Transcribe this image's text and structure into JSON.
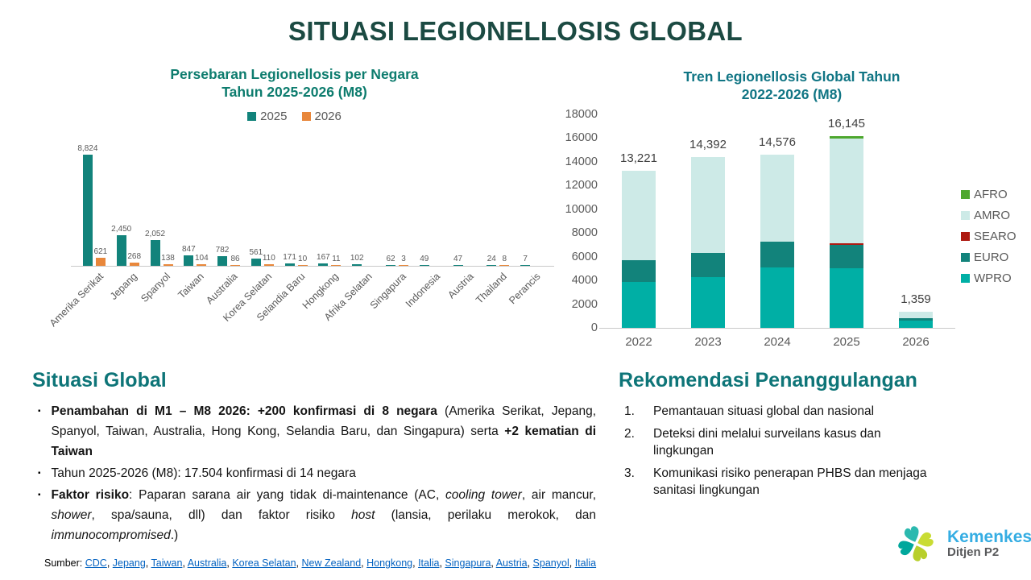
{
  "title": "SITUASI LEGIONELLOSIS GLOBAL",
  "colors": {
    "main_title": "#1B4A42",
    "section_heading": "#0E7578",
    "teal_2025": "#12837B",
    "orange_2026": "#E8873B",
    "wpro": "#00AFA5",
    "euro": "#12837B",
    "searo": "#AE1A12",
    "amro": "#CDEAE7",
    "afro": "#4EA72E",
    "axis_gray": "#595959",
    "link_blue": "#0563C1",
    "logo_blue": "#35ADE3",
    "logo_teal": "#00A79C",
    "logo_lime": "#C9DC33"
  },
  "chart_data": [
    {
      "type": "bar",
      "title": "Persebaran Legionellosis per Negara\nTahun 2025-2026 (M8)",
      "title_color": "#0D7C6E",
      "categories": [
        "Amerika Serikat",
        "Jepang",
        "Spanyol",
        "Taiwan",
        "Australia",
        "Korea Selatan",
        "Selandia Baru",
        "Hongkong",
        "Afrika Selatan",
        "Singapura",
        "Indonesia",
        "Austria",
        "Thailand",
        "Perancis"
      ],
      "series": [
        {
          "name": "2025",
          "color": "#12837B",
          "values": [
            8824,
            2450,
            2052,
            847,
            782,
            561,
            171,
            167,
            102,
            62,
            49,
            47,
            24,
            7
          ],
          "labels": [
            "8,824",
            "2,450",
            "2,052",
            "847",
            "782",
            "561",
            "171",
            "167",
            "102",
            "62",
            "49",
            "47",
            "24",
            "7"
          ]
        },
        {
          "name": "2026",
          "color": "#E8873B",
          "values": [
            621,
            268,
            138,
            104,
            86,
            110,
            10,
            11,
            0,
            3,
            0,
            0,
            8,
            0
          ],
          "labels": [
            "621",
            "268",
            "138",
            "104",
            "86",
            "110",
            "10",
            "11",
            "",
            "3",
            "",
            "",
            "8",
            ""
          ]
        }
      ],
      "xlabel": "",
      "ylabel": "",
      "ylim": [
        0,
        8824
      ],
      "grid": false,
      "legend_position": "top"
    },
    {
      "type": "stacked-bar",
      "title": "Tren Legionellosis Global Tahun\n2022-2026 (M8)",
      "title_color": "#107584",
      "categories": [
        "2022",
        "2023",
        "2024",
        "2025",
        "2026"
      ],
      "series": [
        {
          "name": "WPRO",
          "color": "#00AFA5",
          "values": [
            3900,
            4250,
            5100,
            5050,
            620
          ]
        },
        {
          "name": "EURO",
          "color": "#12837B",
          "values": [
            1800,
            2050,
            2150,
            1960,
            190
          ]
        },
        {
          "name": "SEARO",
          "color": "#AE1A12",
          "values": [
            0,
            0,
            0,
            135,
            0
          ]
        },
        {
          "name": "AMRO",
          "color": "#CDEAE7",
          "values": [
            7521,
            8092,
            7326,
            8830,
            549
          ]
        },
        {
          "name": "AFRO",
          "color": "#4EA72E",
          "values": [
            0,
            0,
            0,
            170,
            0
          ]
        }
      ],
      "totals": [
        13221,
        14392,
        14576,
        16145,
        1359
      ],
      "total_labels": [
        "13,221",
        "14,392",
        "14,576",
        "16,145",
        "1,359"
      ],
      "y_ticks": [
        0,
        2000,
        4000,
        6000,
        8000,
        10000,
        12000,
        14000,
        16000,
        18000
      ],
      "xlabel": "",
      "ylabel": "",
      "ylim": [
        0,
        18000
      ],
      "grid": false,
      "legend_order": [
        "AFRO",
        "AMRO",
        "SEARO",
        "EURO",
        "WPRO"
      ],
      "legend_position": "right"
    }
  ],
  "situasi": {
    "heading": "Situasi Global",
    "bullets": [
      {
        "segments": [
          {
            "t": "Penambahan di M1 – M8 2026: +200 konfirmasi di 8 negara",
            "b": true
          },
          {
            "t": " (Amerika Serikat, Jepang, Spanyol, Taiwan, Australia, Hong Kong, Selandia Baru, dan Singapura) serta "
          },
          {
            "t": "+2 kematian di Taiwan",
            "b": true
          }
        ]
      },
      {
        "segments": [
          {
            "t": "Tahun 2025-2026 (M8): 17.504  konfirmasi di 14 negara"
          }
        ]
      },
      {
        "segments": [
          {
            "t": "Faktor risiko",
            "b": true
          },
          {
            "t": ": Paparan sarana air yang tidak di-maintenance (AC, "
          },
          {
            "t": "cooling tower",
            "i": true
          },
          {
            "t": ", air mancur, "
          },
          {
            "t": "shower",
            "i": true
          },
          {
            "t": ", spa/sauna, dll) dan faktor risiko "
          },
          {
            "t": "host",
            "i": true
          },
          {
            "t": " ("
          },
          {
            "t": "lansia, perilaku merokok, dan "
          },
          {
            "t": "immunocompromised",
            "i": true
          },
          {
            "t": ".)"
          }
        ]
      }
    ]
  },
  "rekomendasi": {
    "heading": "Rekomendasi Penanggulangan",
    "items": [
      "Pemantauan situasi global dan nasional",
      "Deteksi dini melalui surveilans kasus dan lingkungan",
      "Komunikasi risiko penerapan PHBS dan menjaga sanitasi lingkungan"
    ]
  },
  "footer": {
    "prefix": "Sumber:",
    "links": [
      "CDC",
      "Jepang",
      "Taiwan",
      "Australia",
      "Korea Selatan",
      "New Zealand",
      "Hongkong",
      "Italia",
      "Singapura",
      "Austria",
      "Spanyol",
      "Italia"
    ]
  },
  "logo": {
    "brand": "Kemenkes",
    "sub": "Ditjen P2"
  }
}
